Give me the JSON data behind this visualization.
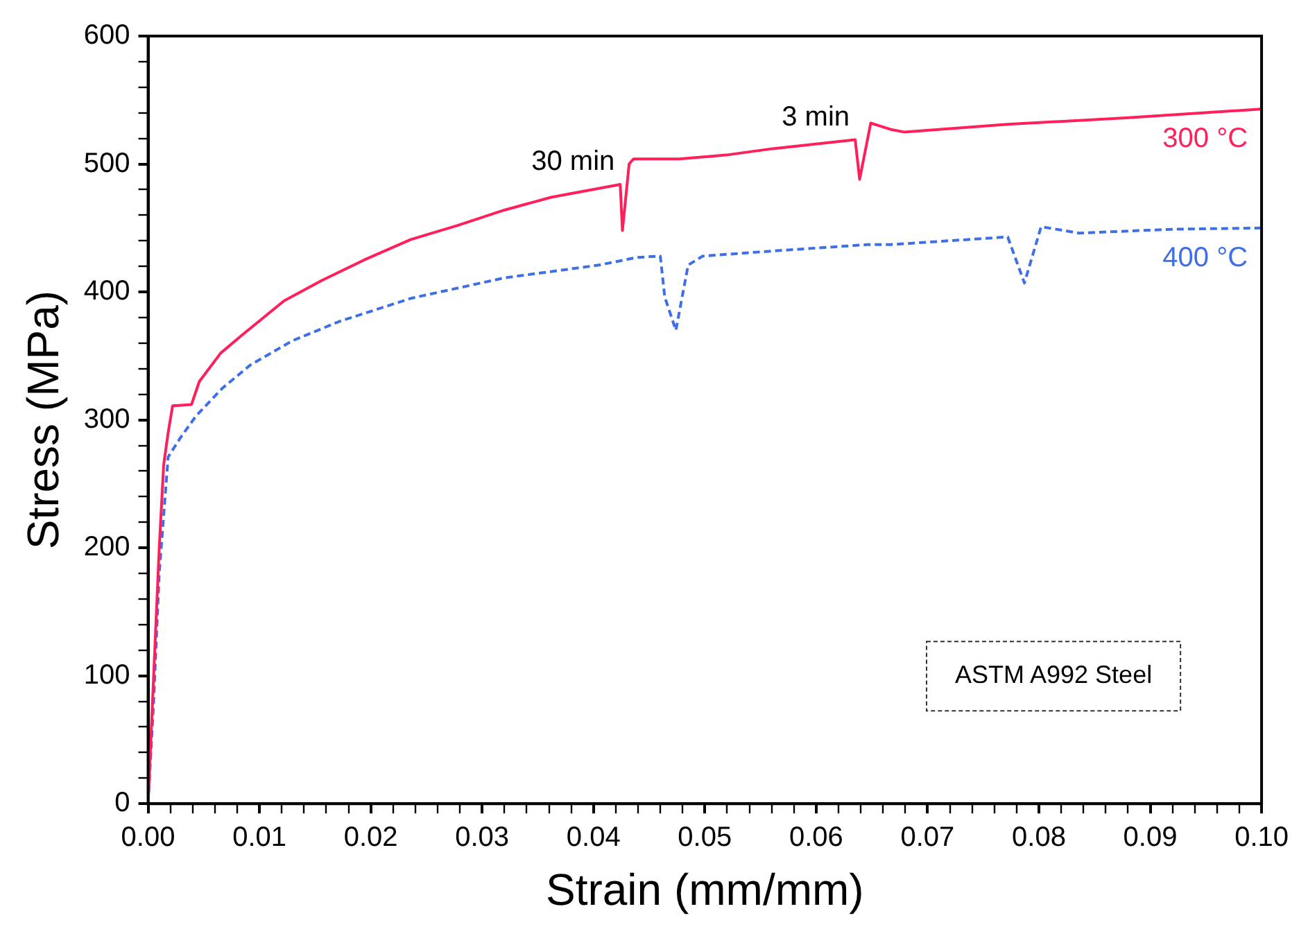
{
  "chart_data": {
    "type": "line",
    "xlabel": "Strain (mm/mm)",
    "ylabel": "Stress (MPa)",
    "marker": "none",
    "grid": false,
    "legend": false,
    "xlim": [
      0,
      0.1
    ],
    "ylim": [
      0,
      600
    ],
    "xticks": [
      {
        "value": 0,
        "label": "0.00"
      },
      {
        "value": 0.002,
        "label": null
      },
      {
        "value": 0.004,
        "label": null
      },
      {
        "value": 0.006,
        "label": null
      },
      {
        "value": 0.008,
        "label": null
      },
      {
        "value": 0.01,
        "label": "0.01"
      },
      {
        "value": 0.012,
        "label": null
      },
      {
        "value": 0.014,
        "label": null
      },
      {
        "value": 0.016,
        "label": null
      },
      {
        "value": 0.018,
        "label": null
      },
      {
        "value": 0.02,
        "label": "0.02"
      },
      {
        "value": 0.022,
        "label": null
      },
      {
        "value": 0.024,
        "label": null
      },
      {
        "value": 0.026,
        "label": null
      },
      {
        "value": 0.028,
        "label": null
      },
      {
        "value": 0.03,
        "label": "0.03"
      },
      {
        "value": 0.032,
        "label": null
      },
      {
        "value": 0.034,
        "label": null
      },
      {
        "value": 0.036,
        "label": null
      },
      {
        "value": 0.038,
        "label": null
      },
      {
        "value": 0.04,
        "label": "0.04"
      },
      {
        "value": 0.042,
        "label": null
      },
      {
        "value": 0.044,
        "label": null
      },
      {
        "value": 0.046,
        "label": null
      },
      {
        "value": 0.048,
        "label": null
      },
      {
        "value": 0.05,
        "label": "0.05"
      },
      {
        "value": 0.052,
        "label": null
      },
      {
        "value": 0.054,
        "label": null
      },
      {
        "value": 0.056,
        "label": null
      },
      {
        "value": 0.058,
        "label": null
      },
      {
        "value": 0.06,
        "label": "0.06"
      },
      {
        "value": 0.062,
        "label": null
      },
      {
        "value": 0.064,
        "label": null
      },
      {
        "value": 0.066,
        "label": null
      },
      {
        "value": 0.068,
        "label": null
      },
      {
        "value": 0.07,
        "label": "0.07"
      },
      {
        "value": 0.072,
        "label": null
      },
      {
        "value": 0.074,
        "label": null
      },
      {
        "value": 0.076,
        "label": null
      },
      {
        "value": 0.078,
        "label": null
      },
      {
        "value": 0.08,
        "label": "0.08"
      },
      {
        "value": 0.082,
        "label": null
      },
      {
        "value": 0.084,
        "label": null
      },
      {
        "value": 0.086,
        "label": null
      },
      {
        "value": 0.088,
        "label": null
      },
      {
        "value": 0.09,
        "label": "0.09"
      },
      {
        "value": 0.092,
        "label": null
      },
      {
        "value": 0.094,
        "label": null
      },
      {
        "value": 0.096,
        "label": null
      },
      {
        "value": 0.098,
        "label": null
      },
      {
        "value": 0.1,
        "label": "0.10"
      }
    ],
    "yticks": [
      0,
      {
        "value": 20,
        "label": null
      },
      {
        "value": 40,
        "label": null
      },
      {
        "value": 60,
        "label": null
      },
      {
        "value": 80,
        "label": null
      },
      100,
      {
        "value": 120,
        "label": null
      },
      {
        "value": 140,
        "label": null
      },
      {
        "value": 160,
        "label": null
      },
      {
        "value": 180,
        "label": null
      },
      200,
      {
        "value": 220,
        "label": null
      },
      {
        "value": 240,
        "label": null
      },
      {
        "value": 260,
        "label": null
      },
      {
        "value": 280,
        "label": null
      },
      300,
      {
        "value": 320,
        "label": null
      },
      {
        "value": 340,
        "label": null
      },
      {
        "value": 360,
        "label": null
      },
      {
        "value": 380,
        "label": null
      },
      400,
      {
        "value": 420,
        "label": null
      },
      {
        "value": 440,
        "label": null
      },
      {
        "value": 460,
        "label": null
      },
      {
        "value": 480,
        "label": null
      },
      500,
      {
        "value": 520,
        "label": null
      },
      {
        "value": 540,
        "label": null
      },
      {
        "value": 560,
        "label": null
      },
      {
        "value": 580,
        "label": null
      },
      600
    ],
    "series": [
      {
        "name": "300 °C",
        "color": "#ff1f5a",
        "line_style": "solid",
        "x": [
          0,
          0.0005,
          0.001,
          0.0014,
          0.0018,
          0.0022,
          0.0039,
          0.0046,
          0.0065,
          0.0084,
          0.0122,
          0.0156,
          0.0194,
          0.0236,
          0.0278,
          0.032,
          0.0362,
          0.0424,
          0.0426,
          0.0432,
          0.0436,
          0.0477,
          0.0519,
          0.0561,
          0.0635,
          0.0639,
          0.0649,
          0.0667,
          0.0679,
          0.0772,
          0.0878,
          0.1
        ],
        "values": [
          0,
          100,
          200,
          265,
          290,
          311,
          312,
          330,
          352,
          366,
          393,
          409,
          425,
          441,
          452,
          464,
          474,
          484,
          448,
          500,
          504,
          504,
          507,
          512,
          519,
          488,
          532,
          527,
          525,
          531,
          536,
          543
        ]
      },
      {
        "name": "400 °C",
        "color": "#3f6fe6",
        "line_style": "dashed",
        "x": [
          0,
          0.0005,
          0.001,
          0.0018,
          0.0029,
          0.0043,
          0.0067,
          0.0092,
          0.013,
          0.0172,
          0.0236,
          0.032,
          0.0405,
          0.0439,
          0.046,
          0.0464,
          0.0474,
          0.0485,
          0.0498,
          0.0561,
          0.0646,
          0.0667,
          0.0772,
          0.0787,
          0.0802,
          0.0836,
          0.092,
          0.1
        ],
        "values": [
          0,
          80,
          180,
          271,
          286,
          303,
          325,
          343,
          362,
          377,
          395,
          411,
          421,
          427,
          428,
          396,
          370,
          421,
          428,
          432,
          437,
          437,
          443,
          407,
          451,
          446,
          449,
          450
        ]
      }
    ],
    "annotations": [
      {
        "text": "30 min",
        "x": 0.0424,
        "y": 484
      },
      {
        "text": "3 min",
        "x": 0.0635,
        "y": 519
      },
      "ASTM A992 Steel"
    ]
  }
}
